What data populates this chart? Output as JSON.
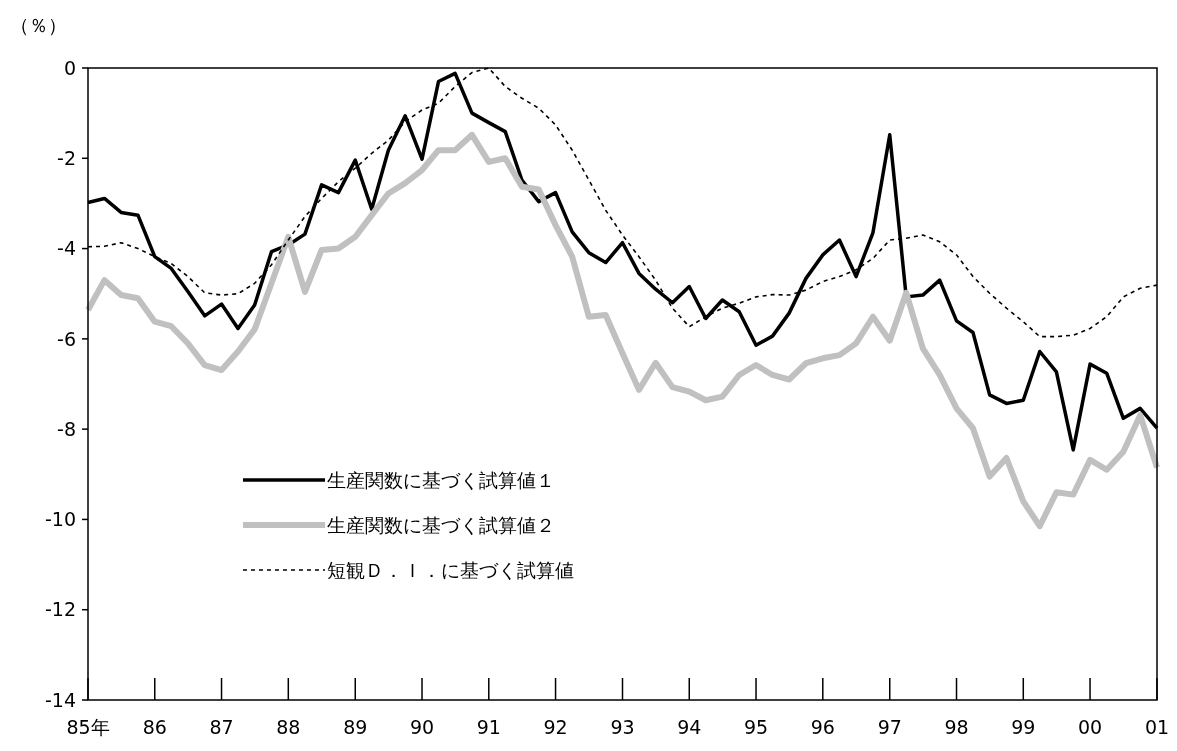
{
  "chart_data": {
    "type": "line",
    "ylabel": "（％）",
    "x": [
      "1985-01",
      "1985-04",
      "1985-07",
      "1985-10",
      "1986-01",
      "1986-04",
      "1986-07",
      "1986-10",
      "1987-01",
      "1987-04",
      "1987-07",
      "1987-10",
      "1988-01",
      "1988-04",
      "1988-07",
      "1988-10",
      "1989-01",
      "1989-04",
      "1989-07",
      "1989-10",
      "1990-01",
      "1990-04",
      "1990-07",
      "1990-10",
      "1991-01",
      "1991-04",
      "1991-07",
      "1991-10",
      "1992-01",
      "1992-04",
      "1992-07",
      "1992-10",
      "1993-01",
      "1993-04",
      "1993-07",
      "1993-10",
      "1994-01",
      "1994-04",
      "1994-07",
      "1994-10",
      "1995-01",
      "1995-04",
      "1995-07",
      "1995-10",
      "1996-01",
      "1996-04",
      "1996-07",
      "1996-10",
      "1997-01",
      "1997-04",
      "1997-07",
      "1997-10",
      "1998-01",
      "1998-04",
      "1998-07",
      "1998-10",
      "1999-01",
      "1999-04",
      "1999-07",
      "1999-10",
      "2000-01",
      "2000-04",
      "2000-07",
      "2000-10",
      "2001-01"
    ],
    "xlim": [
      "1985-01",
      "2001-01"
    ],
    "xticks": [
      {
        "value": "1985-01",
        "label": "85年"
      },
      {
        "value": "1986-01",
        "label": "86"
      },
      {
        "value": "1987-01",
        "label": "87"
      },
      {
        "value": "1988-01",
        "label": "88"
      },
      {
        "value": "1989-01",
        "label": "89"
      },
      {
        "value": "1990-01",
        "label": "90"
      },
      {
        "value": "1991-01",
        "label": "91"
      },
      {
        "value": "1992-01",
        "label": "92"
      },
      {
        "value": "1993-01",
        "label": "93"
      },
      {
        "value": "1994-01",
        "label": "94"
      },
      {
        "value": "1995-01",
        "label": "95"
      },
      {
        "value": "1996-01",
        "label": "96"
      },
      {
        "value": "1997-01",
        "label": "97"
      },
      {
        "value": "1998-01",
        "label": "98"
      },
      {
        "value": "1999-01",
        "label": "99"
      },
      {
        "value": "2000-01",
        "label": "00"
      },
      {
        "value": "2001-01",
        "label": "01"
      }
    ],
    "ylim": [
      -14,
      0
    ],
    "yticks": [
      -14,
      -12,
      -10,
      -8,
      -6,
      -4,
      -2,
      0
    ],
    "grid": false,
    "legend": "bottom left",
    "series": [
      {
        "name": "生産関数に基づく試算値１",
        "color": "#000000",
        "line_style": "solid",
        "values": [
          -2.98,
          -2.89,
          -3.2,
          -3.26,
          -4.18,
          -4.44,
          -4.95,
          -5.49,
          -5.23,
          -5.77,
          -5.25,
          -4.07,
          -3.92,
          -3.68,
          -2.59,
          -2.76,
          -2.04,
          -3.13,
          -1.82,
          -1.06,
          -2.02,
          -0.3,
          -0.12,
          -1.0,
          -1.21,
          -1.41,
          -2.48,
          -2.96,
          -2.76,
          -3.63,
          -4.09,
          -4.31,
          -3.87,
          -4.55,
          -4.9,
          -5.2,
          -4.84,
          -5.55,
          -5.14,
          -5.4,
          -6.14,
          -5.94,
          -5.43,
          -4.66,
          -4.14,
          -3.81,
          -4.62,
          -3.65,
          -1.48,
          -5.07,
          -5.03,
          -4.7,
          -5.6,
          -5.86,
          -7.24,
          -7.43,
          -7.36,
          -6.28,
          -6.73,
          -8.46,
          -6.56,
          -6.76,
          -7.76,
          -7.54,
          -7.98
        ]
      },
      {
        "name": "生産関数に基づく試算値２",
        "color": "#c0c0c0",
        "line_style": "solid",
        "values": [
          -5.36,
          -4.7,
          -5.03,
          -5.1,
          -5.62,
          -5.72,
          -6.1,
          -6.58,
          -6.69,
          -6.28,
          -5.79,
          -4.77,
          -3.74,
          -4.96,
          -4.03,
          -4.0,
          -3.74,
          -3.26,
          -2.78,
          -2.55,
          -2.26,
          -1.82,
          -1.82,
          -1.48,
          -2.08,
          -2.0,
          -2.63,
          -2.69,
          -3.48,
          -4.18,
          -5.51,
          -5.47,
          -6.32,
          -7.13,
          -6.53,
          -7.07,
          -7.17,
          -7.36,
          -7.28,
          -6.8,
          -6.58,
          -6.8,
          -6.9,
          -6.54,
          -6.43,
          -6.36,
          -6.1,
          -5.51,
          -6.04,
          -4.98,
          -6.21,
          -6.8,
          -7.54,
          -7.98,
          -9.05,
          -8.64,
          -9.6,
          -10.15,
          -9.4,
          -9.45,
          -8.68,
          -8.9,
          -8.5,
          -7.69,
          -8.85
        ]
      },
      {
        "name": "短観Ｄ．Ｉ．に基づく試算値",
        "color": "#000000",
        "line_style": "dashed",
        "values": [
          -3.96,
          -3.95,
          -3.87,
          -4.0,
          -4.18,
          -4.33,
          -4.62,
          -4.98,
          -5.03,
          -5.0,
          -4.77,
          -4.36,
          -3.81,
          -3.29,
          -2.89,
          -2.52,
          -2.22,
          -1.89,
          -1.6,
          -1.19,
          -0.93,
          -0.78,
          -0.41,
          -0.1,
          0.0,
          -0.41,
          -0.67,
          -0.89,
          -1.26,
          -1.82,
          -2.48,
          -3.15,
          -3.7,
          -4.18,
          -4.7,
          -5.32,
          -5.73,
          -5.51,
          -5.32,
          -5.21,
          -5.07,
          -5.02,
          -5.03,
          -4.92,
          -4.73,
          -4.62,
          -4.47,
          -4.22,
          -3.81,
          -3.77,
          -3.7,
          -3.85,
          -4.14,
          -4.62,
          -4.99,
          -5.32,
          -5.62,
          -5.95,
          -5.95,
          -5.92,
          -5.77,
          -5.51,
          -5.07,
          -4.88,
          -4.81
        ]
      }
    ]
  }
}
